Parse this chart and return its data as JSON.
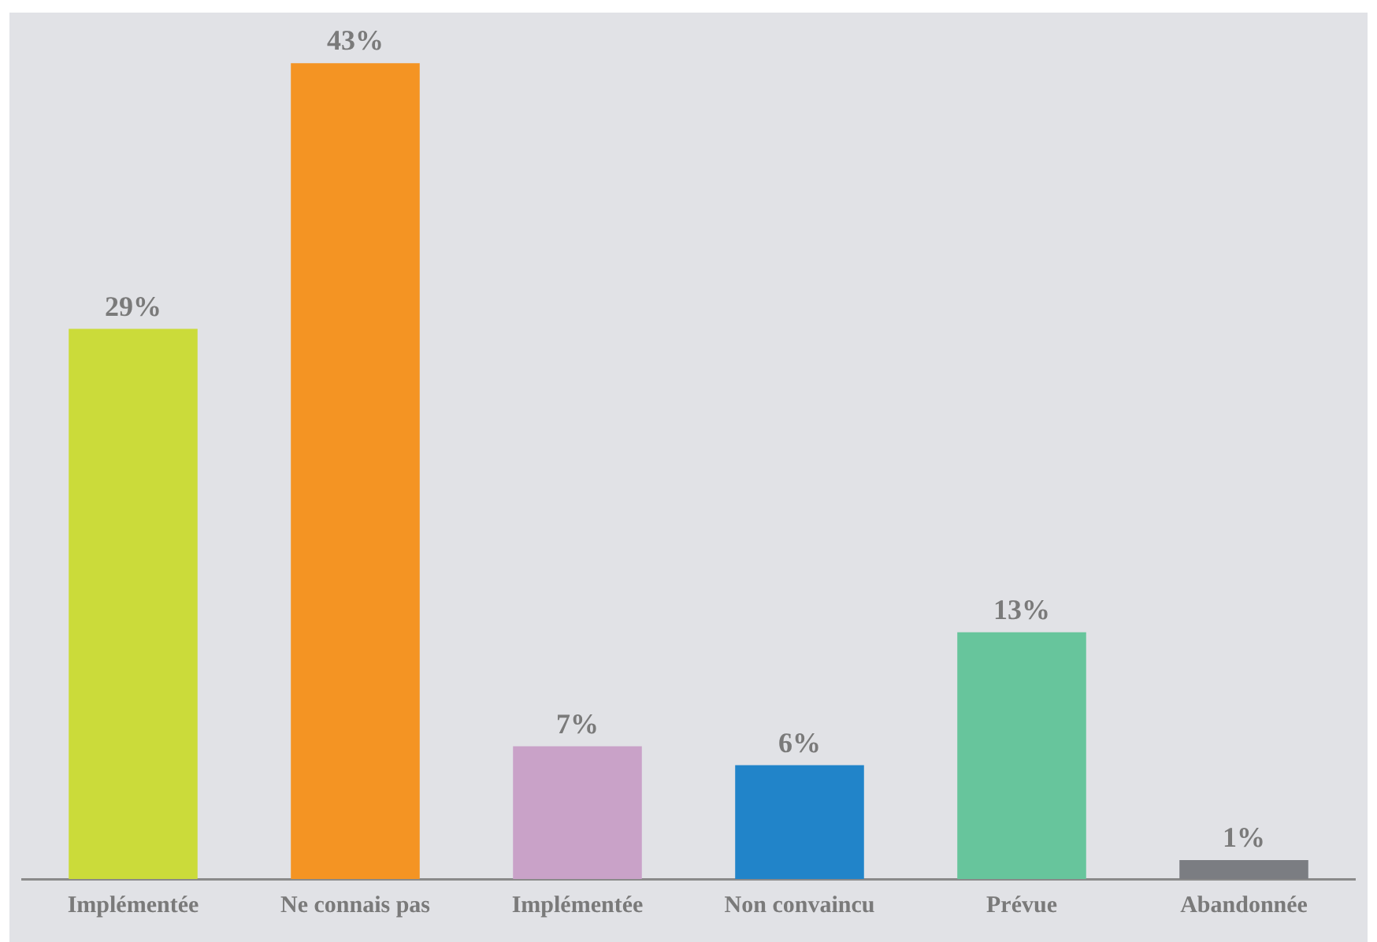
{
  "chart_data": {
    "type": "bar",
    "categories": [
      "Implémentée",
      "Ne connais pas",
      "Implémentée",
      "Non convaincu",
      "Prévue",
      "Abandonnée"
    ],
    "values": [
      29,
      43,
      7,
      6,
      13,
      1
    ],
    "value_labels": [
      "29%",
      "43%",
      "7%",
      "6%",
      "13%",
      "1%"
    ],
    "colors": [
      "#cbdb3a",
      "#f49423",
      "#c9a2c8",
      "#2184c9",
      "#67c59c",
      "#7b7d82"
    ],
    "grid": false,
    "legend": false
  }
}
